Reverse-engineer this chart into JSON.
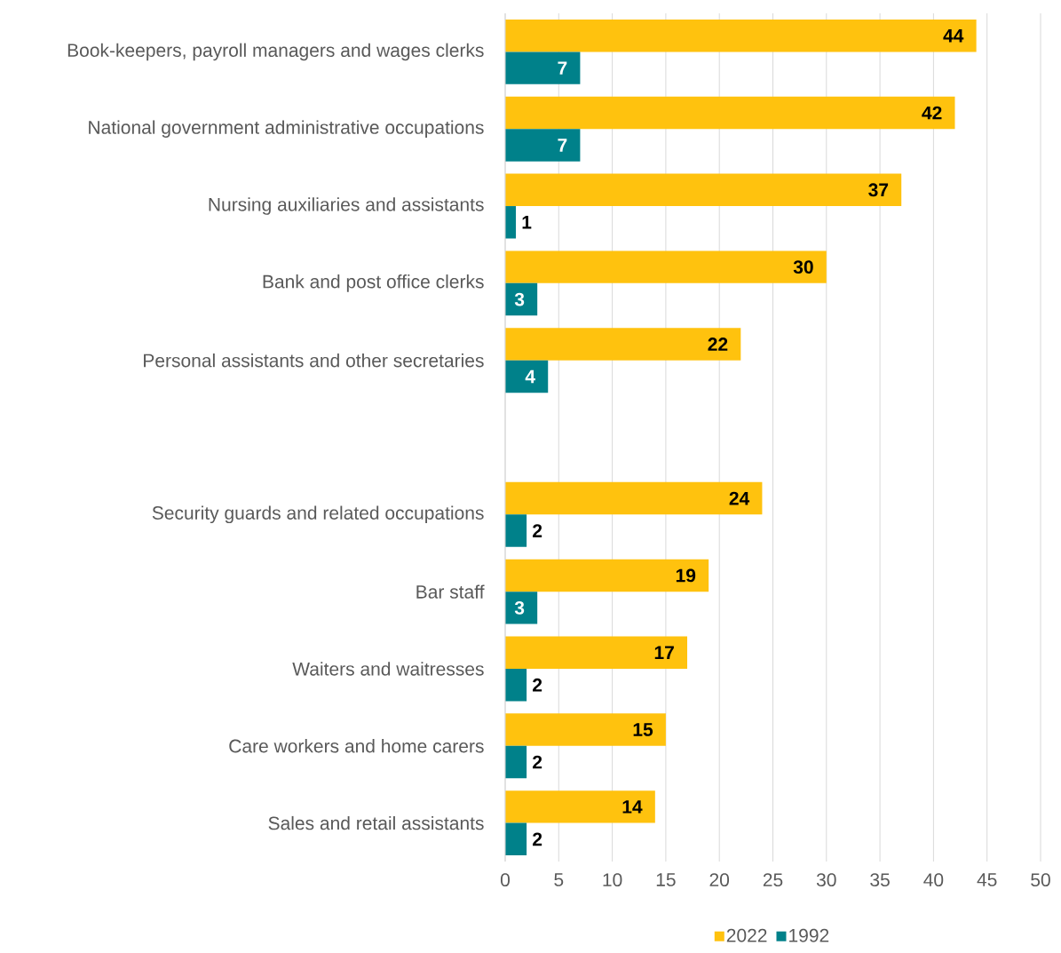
{
  "chart_data": {
    "type": "bar",
    "orientation": "horizontal",
    "categories": [
      "Book-keepers, payroll managers and wages clerks",
      "National government administrative occupations",
      "Nursing auxiliaries and assistants",
      "Bank and post office clerks",
      "Personal assistants and other secretaries",
      null,
      "Security guards and related occupations",
      "Bar staff",
      "Waiters and waitresses",
      "Care workers and home carers",
      "Sales and retail assistants"
    ],
    "series": [
      {
        "name": "2022",
        "color": "#ffc20e",
        "values": [
          44,
          42,
          37,
          30,
          22,
          null,
          24,
          19,
          17,
          15,
          14
        ]
      },
      {
        "name": "1992",
        "color": "#00818a",
        "values": [
          7,
          7,
          1,
          3,
          4,
          null,
          2,
          3,
          2,
          2,
          2
        ]
      }
    ],
    "xlim": [
      0,
      50
    ],
    "xticks": [
      0,
      5,
      10,
      15,
      20,
      25,
      30,
      35,
      40,
      45,
      50
    ],
    "grid": "x",
    "legend": "bottom",
    "data_labels": true
  }
}
